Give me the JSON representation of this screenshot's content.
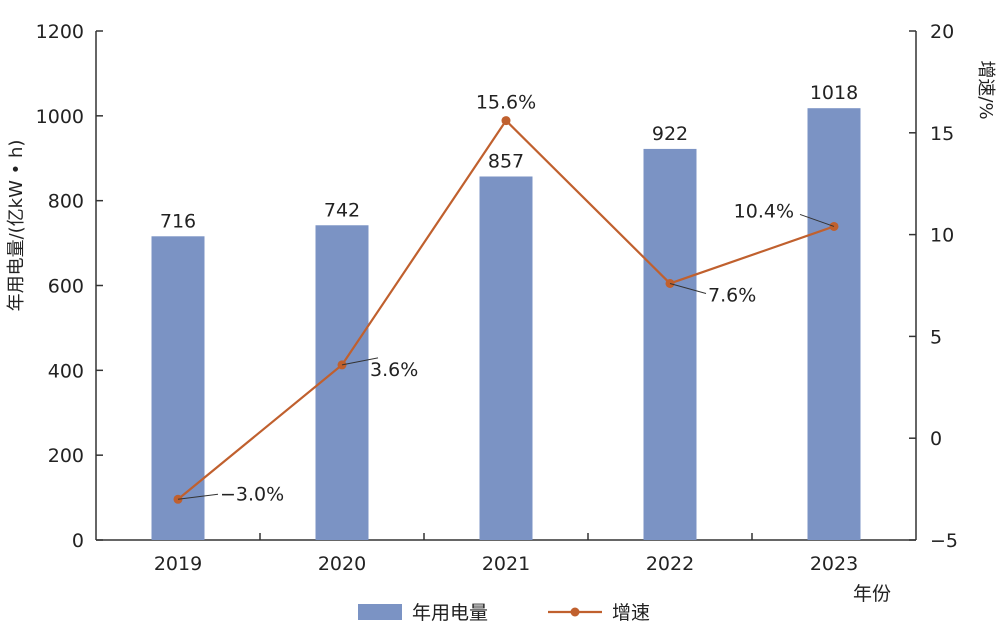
{
  "chart_data": {
    "type": "bar+line",
    "title": "",
    "categories": [
      "2019",
      "2020",
      "2021",
      "2022",
      "2023"
    ],
    "xlabel": "年份",
    "ylabel_left": "年用电量/(亿kW • h)",
    "ylabel_right": "增速/%",
    "ylim_left": [
      0,
      1200
    ],
    "ylim_right": [
      -5,
      20
    ],
    "yticks_left": [
      "0",
      "200",
      "400",
      "600",
      "800",
      "1000",
      "1200"
    ],
    "yticks_right": [
      "-5",
      "0",
      "5",
      "10",
      "15",
      "20"
    ],
    "legend_position": "bottom",
    "grid": false,
    "series": [
      {
        "name": "年用电量",
        "type": "bar",
        "axis": "left",
        "color": "#7b93c4",
        "values": [
          716,
          742,
          857,
          922,
          1018
        ],
        "labels": [
          "716",
          "742",
          "857",
          "922",
          "1018"
        ]
      },
      {
        "name": "增速",
        "type": "line",
        "axis": "right",
        "color": "#c0602e",
        "values": [
          -3.0,
          3.6,
          15.6,
          7.6,
          10.4
        ],
        "labels": [
          "−3.0%",
          "3.6%",
          "15.6%",
          "7.6%",
          "10.4%"
        ]
      }
    ]
  }
}
